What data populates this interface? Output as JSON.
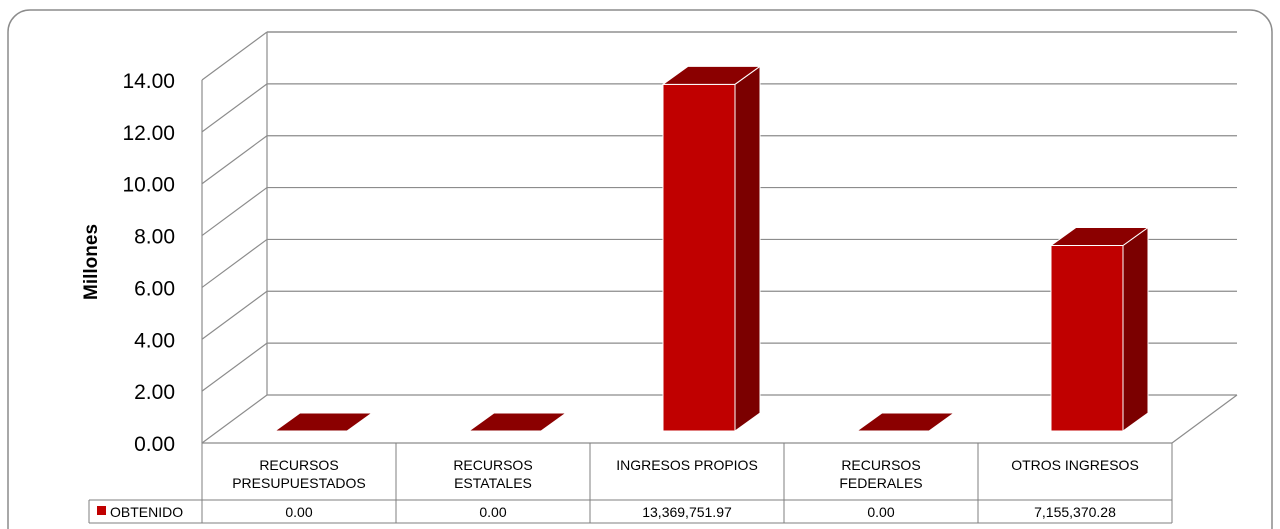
{
  "chart_data": {
    "type": "bar",
    "ylabel": "Millones",
    "ylim": [
      0,
      14
    ],
    "yticks": [
      "0.00",
      "2.00",
      "4.00",
      "6.00",
      "8.00",
      "10.00",
      "12.00",
      "14.00"
    ],
    "categories": [
      [
        "RECURSOS",
        "PRESUPUESTADOS"
      ],
      [
        "RECURSOS",
        "ESTATALES"
      ],
      [
        "INGRESOS PROPIOS"
      ],
      [
        "RECURSOS",
        "FEDERALES"
      ],
      [
        "OTROS INGRESOS"
      ]
    ],
    "series": [
      {
        "name": "OBTENIDO",
        "values": [
          0,
          0,
          13.36975197,
          0,
          7.15537028
        ],
        "labels": [
          "0.00",
          "0.00",
          "13,369,751.97",
          "0.00",
          "7,155,370.28"
        ]
      }
    ],
    "legend_position": "data-table",
    "grid": true,
    "colors": {
      "front": "#c00000",
      "side": "#7b0000",
      "top": "#8b0000",
      "grid": "#8c8c8c"
    }
  }
}
